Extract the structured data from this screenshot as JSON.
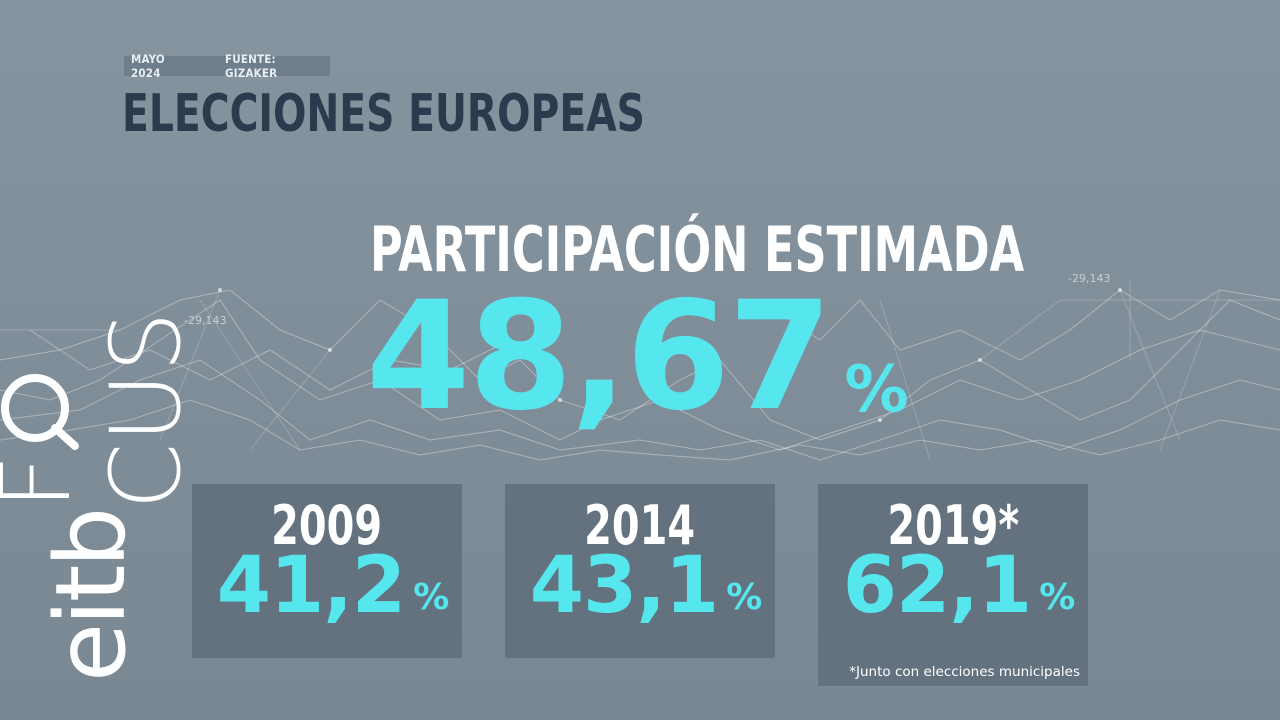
{
  "header": {
    "date": "MAYO 2024",
    "source": "FUENTE: GIZAKER",
    "title": "ELECCIONES EUROPEAS"
  },
  "logo": {
    "brand": "eitb",
    "product": "FOCUS",
    "product_before_o": "F",
    "product_o": "O",
    "product_after_o": "CUS"
  },
  "estimate": {
    "label": "PARTICIPACIÓN ESTIMADA",
    "value": "48,67",
    "unit": "%"
  },
  "history": [
    {
      "year": "2009",
      "value": "41,2",
      "unit": "%",
      "note": ""
    },
    {
      "year": "2014",
      "value": "43,1",
      "unit": "%",
      "note": ""
    },
    {
      "year": "2019*",
      "value": "62,1",
      "unit": "%",
      "note": "*Junto con elecciones municipales"
    }
  ],
  "background_labels": {
    "left": "-29,143",
    "right": "-29,143"
  },
  "colors": {
    "background": "#808e9a",
    "title": "#2b3a4d",
    "accent": "#56e6ee",
    "card": "#5e6b7a",
    "text_light": "#ffffff"
  }
}
